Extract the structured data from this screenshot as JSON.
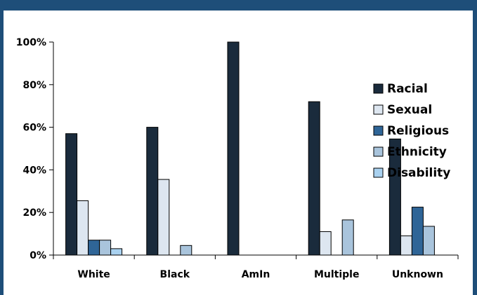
{
  "chart_data": {
    "type": "bar",
    "categories": [
      "White",
      "Black",
      "AmIn",
      "Multiple",
      "Unknown"
    ],
    "series": [
      {
        "name": "Racial",
        "color": "#1a2b3c",
        "values": [
          57,
          60,
          100,
          72,
          54.5
        ]
      },
      {
        "name": "Sexual",
        "color": "#dde6f0",
        "values": [
          25.5,
          35.5,
          0,
          11,
          9
        ]
      },
      {
        "name": "Religious",
        "color": "#2f6597",
        "values": [
          7,
          0,
          0,
          0,
          22.5
        ]
      },
      {
        "name": "Ethnicity",
        "color": "#a9c4dc",
        "values": [
          7,
          4.5,
          0,
          16.5,
          13.5
        ]
      },
      {
        "name": "Disability",
        "color": "#a9d1ef",
        "values": [
          3,
          0,
          0,
          0,
          0
        ]
      }
    ],
    "y_ticks": [
      "0%",
      "20%",
      "40%",
      "60%",
      "80%",
      "100%"
    ],
    "ylim": [
      0,
      100
    ],
    "legend_position": "right",
    "grid": false
  }
}
